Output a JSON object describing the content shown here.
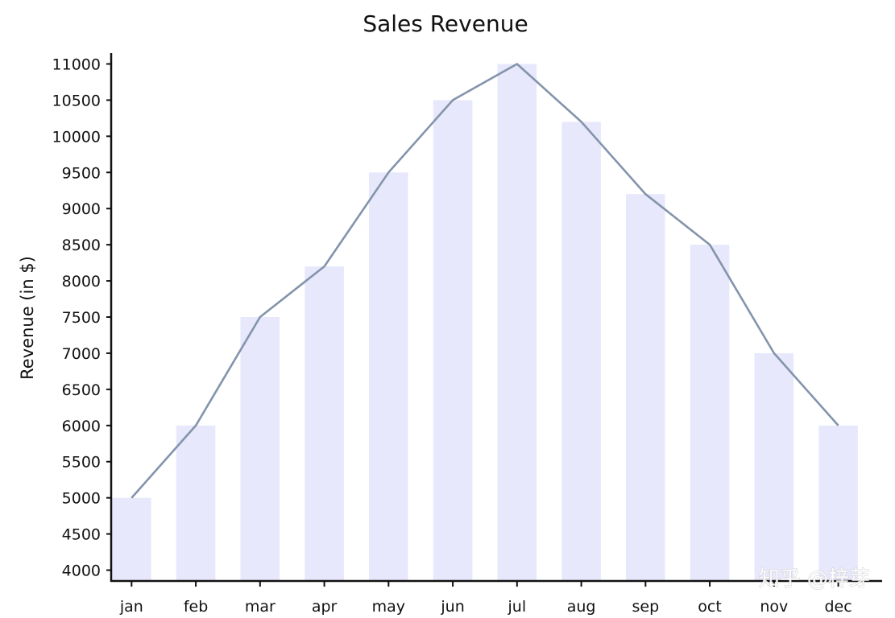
{
  "chart_data": {
    "type": "bar",
    "title": "Sales Revenue",
    "xlabel": "",
    "ylabel": "Revenue (in $)",
    "categories": [
      "jan",
      "feb",
      "mar",
      "apr",
      "may",
      "jun",
      "jul",
      "aug",
      "sep",
      "oct",
      "nov",
      "dec"
    ],
    "series": [
      {
        "type": "bar",
        "values": [
          5000,
          6000,
          7500,
          8200,
          9500,
          10500,
          11000,
          10200,
          9200,
          8500,
          7000,
          6000
        ]
      },
      {
        "type": "line",
        "values": [
          5000,
          6000,
          7500,
          8200,
          9500,
          10500,
          11000,
          10200,
          9200,
          8500,
          7000,
          6000
        ]
      }
    ],
    "ylim": [
      3850,
      11150
    ],
    "yticks": [
      4000,
      4500,
      5000,
      5500,
      6000,
      6500,
      7000,
      7500,
      8000,
      8500,
      9000,
      9500,
      10000,
      10500,
      11000
    ],
    "grid": false,
    "legend": "none",
    "colors": {
      "bar": "#e8e8fc",
      "line": "#8394ab",
      "axis": "#111111"
    }
  },
  "watermark": "知乎 @梓芽"
}
